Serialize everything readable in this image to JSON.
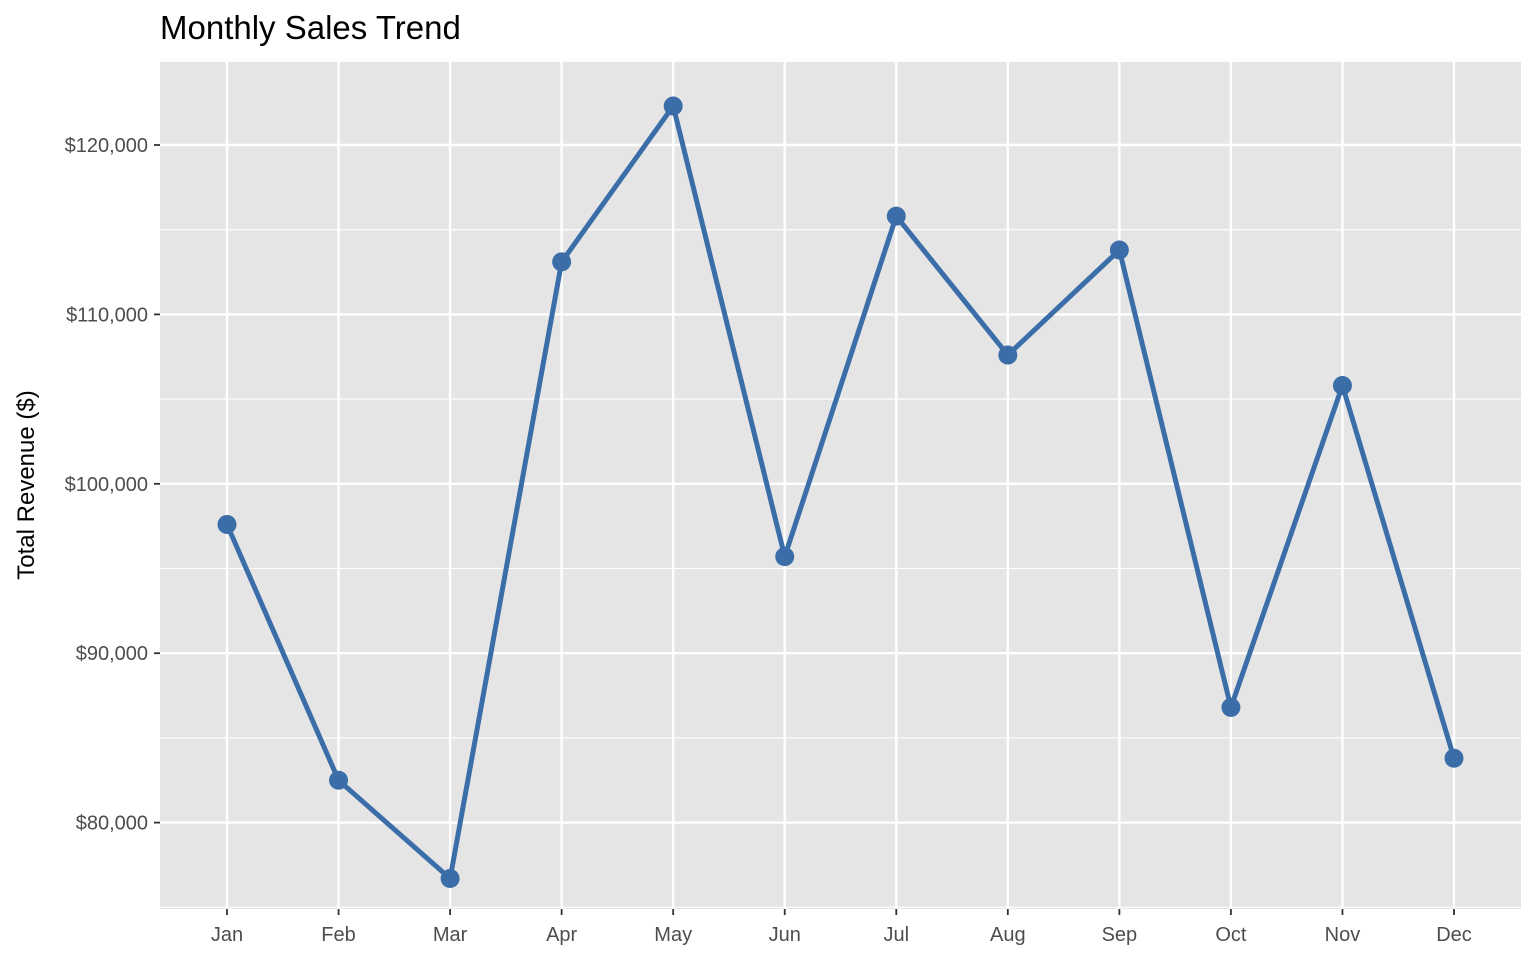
{
  "chart_data": {
    "type": "line",
    "title": "Monthly Sales Trend",
    "xlabel": "",
    "ylabel": "Total Revenue ($)",
    "categories": [
      "Jan",
      "Feb",
      "Mar",
      "Apr",
      "May",
      "Jun",
      "Jul",
      "Aug",
      "Sep",
      "Oct",
      "Nov",
      "Dec"
    ],
    "series": [
      {
        "values": [
          97600,
          82500,
          76700,
          113100,
          122300,
          95700,
          115800,
          107600,
          113800,
          86800,
          105800,
          83800
        ]
      }
    ],
    "ylim": [
      74900,
      124900
    ],
    "yticks": [
      80000,
      90000,
      100000,
      110000,
      120000
    ],
    "ytick_labels": [
      "$80,000",
      "$90,000",
      "$100,000",
      "$110,000",
      "$120,000"
    ],
    "grid": true,
    "legend": "none",
    "colors": {
      "line": "#3b6ea8",
      "panel_background": "#e5e5e5",
      "grid": "#ffffff",
      "tick_text": "#4d4d4d"
    }
  }
}
